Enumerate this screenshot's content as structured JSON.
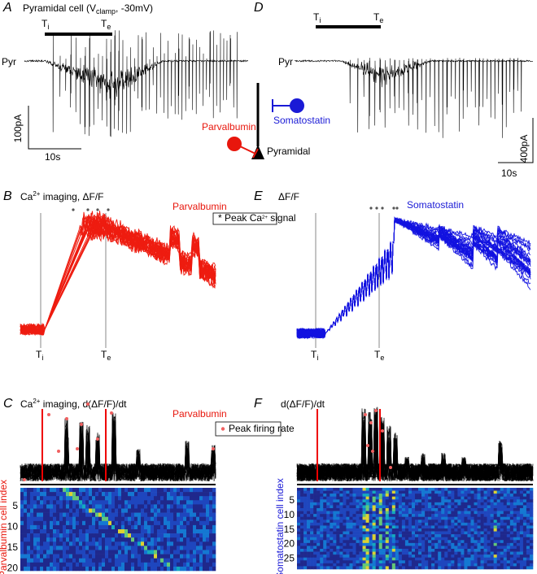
{
  "panels": {
    "A": {
      "label": "A",
      "title": {
        "main": "Pyramidal cell (V",
        "sub": "clamp",
        "rest": ", -30mV)"
      },
      "markers": [
        {
          "text": "T",
          "sub": "i"
        },
        {
          "text": "T",
          "sub": "e"
        }
      ],
      "trace_label": "Pyr",
      "scale_y": "100pA",
      "scale_x": "10s"
    },
    "schematic": {
      "interneuron_1": "Parvalbumin",
      "interneuron_2": "Somatostatin",
      "target": "Pyramidal"
    },
    "D": {
      "label": "D",
      "markers": [
        {
          "text": "T",
          "sub": "i"
        },
        {
          "text": "T",
          "sub": "e"
        }
      ],
      "trace_label": "Pyr",
      "scale_y": "400pA",
      "scale_x": "10s"
    },
    "B": {
      "label": "B",
      "title": {
        "main": "Ca",
        "sup": "2+",
        "rest": " imaging,  ΔF/F"
      },
      "cell_type": "Parvalbumin",
      "legend": {
        "main": "Peak Ca",
        "sup": "2+",
        "rest": " signal"
      },
      "markers": [
        {
          "text": "T",
          "sub": "i"
        },
        {
          "text": "T",
          "sub": "e"
        }
      ]
    },
    "E": {
      "label": "E",
      "title": "ΔF/F",
      "cell_type": "Somatostatin",
      "markers": [
        {
          "text": "T",
          "sub": "i"
        },
        {
          "text": "T",
          "sub": "e"
        }
      ]
    },
    "C": {
      "label": "C",
      "title": {
        "main": "Ca",
        "sup": "2+",
        "rest": " imaging,  d(ΔF/F)/dt"
      },
      "cell_type": "Parvalbumin",
      "legend": "Peak firing rate",
      "axis_label": "Parvalbumin cell index",
      "ticks": [
        5,
        10,
        15,
        20
      ]
    },
    "F": {
      "label": "F",
      "title": "d(ΔF/F)/dt",
      "axis_label": "Somatostatin cell index",
      "ticks": [
        5,
        10,
        15,
        20,
        25
      ]
    }
  }
}
